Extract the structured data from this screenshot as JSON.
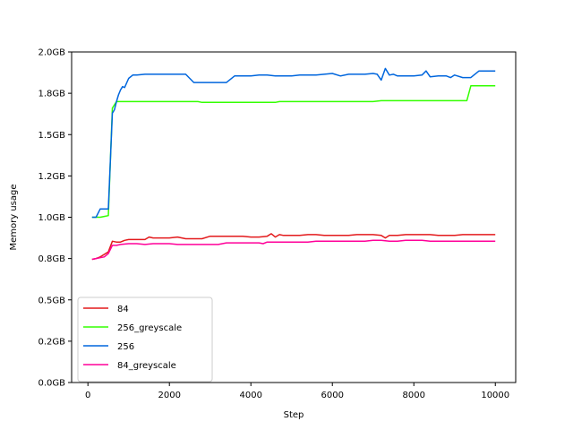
{
  "chart_data": {
    "type": "line",
    "title": "",
    "xlabel": "Step",
    "ylabel": "Memory usage",
    "xlim": [
      -400,
      10500
    ],
    "ylim": [
      0.0,
      2.0
    ],
    "x_ticks": [
      0,
      2000,
      4000,
      6000,
      8000,
      10000
    ],
    "x_tick_labels": [
      "0",
      "2000",
      "4000",
      "6000",
      "8000",
      "10000"
    ],
    "y_ticks": [
      0.0,
      0.25,
      0.5,
      0.75,
      1.0,
      1.25,
      1.5,
      1.75,
      2.0
    ],
    "y_tick_labels": [
      "0.0GB",
      "0.2GB",
      "0.5GB",
      "0.8GB",
      "1.0GB",
      "1.2GB",
      "1.5GB",
      "1.8GB",
      "2.0GB"
    ],
    "grid": false,
    "legend_position": "lower-left",
    "series": [
      {
        "name": "84",
        "color": "#e31a1c",
        "x": [
          100,
          200,
          300,
          400,
          500,
          600,
          700,
          800,
          900,
          1000,
          1200,
          1400,
          1500,
          1600,
          1800,
          2000,
          2200,
          2400,
          2600,
          2800,
          3000,
          3200,
          3400,
          3600,
          3800,
          4000,
          4200,
          4400,
          4500,
          4600,
          4700,
          4800,
          5000,
          5200,
          5400,
          5600,
          5800,
          6000,
          6200,
          6400,
          6600,
          6800,
          7000,
          7200,
          7300,
          7400,
          7600,
          7800,
          8000,
          8200,
          8400,
          8600,
          8800,
          9000,
          9200,
          9400,
          9600,
          9800,
          10000
        ],
        "values": [
          0.745,
          0.75,
          0.76,
          0.775,
          0.79,
          0.855,
          0.85,
          0.85,
          0.86,
          0.865,
          0.865,
          0.865,
          0.88,
          0.875,
          0.875,
          0.875,
          0.88,
          0.87,
          0.87,
          0.87,
          0.885,
          0.885,
          0.885,
          0.885,
          0.885,
          0.88,
          0.88,
          0.885,
          0.9,
          0.88,
          0.895,
          0.89,
          0.89,
          0.89,
          0.895,
          0.895,
          0.89,
          0.89,
          0.89,
          0.89,
          0.895,
          0.895,
          0.895,
          0.89,
          0.875,
          0.89,
          0.89,
          0.895,
          0.895,
          0.895,
          0.895,
          0.89,
          0.89,
          0.89,
          0.895,
          0.895,
          0.895,
          0.895,
          0.895
        ]
      },
      {
        "name": "256_greyscale",
        "color": "#33ff00",
        "x": [
          100,
          200,
          300,
          400,
          500,
          600,
          700,
          800,
          1000,
          1500,
          2000,
          2500,
          2700,
          2800,
          3500,
          4000,
          4600,
          4700,
          5000,
          5500,
          6000,
          6500,
          7000,
          7200,
          7500,
          8000,
          8500,
          9000,
          9300,
          9400,
          9600,
          10000
        ],
        "values": [
          1.0,
          1.0,
          1.0,
          1.005,
          1.01,
          1.66,
          1.7,
          1.7,
          1.7,
          1.7,
          1.7,
          1.7,
          1.7,
          1.695,
          1.695,
          1.695,
          1.695,
          1.7,
          1.7,
          1.7,
          1.7,
          1.7,
          1.7,
          1.705,
          1.705,
          1.705,
          1.705,
          1.705,
          1.705,
          1.795,
          1.795,
          1.795
        ]
      },
      {
        "name": "256",
        "color": "#0066dd",
        "x": [
          100,
          200,
          300,
          400,
          500,
          600,
          650,
          700,
          750,
          800,
          850,
          900,
          1000,
          1100,
          1200,
          1400,
          1600,
          2000,
          2200,
          2400,
          2600,
          2800,
          3000,
          3200,
          3400,
          3600,
          3800,
          4000,
          4200,
          4400,
          4600,
          4800,
          5000,
          5200,
          5400,
          5600,
          5800,
          6000,
          6200,
          6400,
          6600,
          6800,
          7000,
          7100,
          7200,
          7300,
          7400,
          7500,
          7600,
          7800,
          8000,
          8200,
          8300,
          8400,
          8600,
          8800,
          8900,
          9000,
          9200,
          9400,
          9600,
          9800,
          10000
        ],
        "values": [
          1.0,
          1.0,
          1.05,
          1.05,
          1.05,
          1.63,
          1.65,
          1.7,
          1.74,
          1.77,
          1.79,
          1.785,
          1.84,
          1.86,
          1.86,
          1.865,
          1.865,
          1.865,
          1.865,
          1.865,
          1.815,
          1.815,
          1.815,
          1.815,
          1.815,
          1.855,
          1.855,
          1.855,
          1.86,
          1.86,
          1.855,
          1.855,
          1.855,
          1.86,
          1.86,
          1.86,
          1.865,
          1.87,
          1.855,
          1.865,
          1.865,
          1.865,
          1.87,
          1.865,
          1.83,
          1.9,
          1.86,
          1.865,
          1.855,
          1.855,
          1.855,
          1.86,
          1.885,
          1.85,
          1.855,
          1.855,
          1.845,
          1.86,
          1.845,
          1.845,
          1.885,
          1.885,
          1.885
        ]
      },
      {
        "name": "84_greyscale",
        "color": "#ff0099",
        "x": [
          100,
          200,
          300,
          400,
          500,
          600,
          700,
          800,
          1000,
          1200,
          1400,
          1600,
          1800,
          2000,
          2200,
          2400,
          2600,
          2800,
          3000,
          3200,
          3400,
          3600,
          3800,
          4000,
          4200,
          4300,
          4400,
          4600,
          4800,
          5000,
          5200,
          5400,
          5600,
          5800,
          6000,
          6200,
          6400,
          6600,
          6800,
          7000,
          7200,
          7400,
          7600,
          7800,
          8000,
          8200,
          8400,
          8600,
          8800,
          9000,
          9200,
          9400,
          9600,
          9800,
          10000
        ],
        "values": [
          0.745,
          0.75,
          0.755,
          0.76,
          0.78,
          0.83,
          0.83,
          0.835,
          0.84,
          0.84,
          0.835,
          0.84,
          0.84,
          0.84,
          0.835,
          0.835,
          0.835,
          0.835,
          0.835,
          0.835,
          0.845,
          0.845,
          0.845,
          0.845,
          0.845,
          0.84,
          0.85,
          0.85,
          0.85,
          0.85,
          0.85,
          0.85,
          0.855,
          0.855,
          0.855,
          0.855,
          0.855,
          0.855,
          0.855,
          0.86,
          0.86,
          0.855,
          0.855,
          0.86,
          0.86,
          0.86,
          0.855,
          0.855,
          0.855,
          0.855,
          0.855,
          0.855,
          0.855,
          0.855,
          0.855
        ]
      }
    ]
  }
}
